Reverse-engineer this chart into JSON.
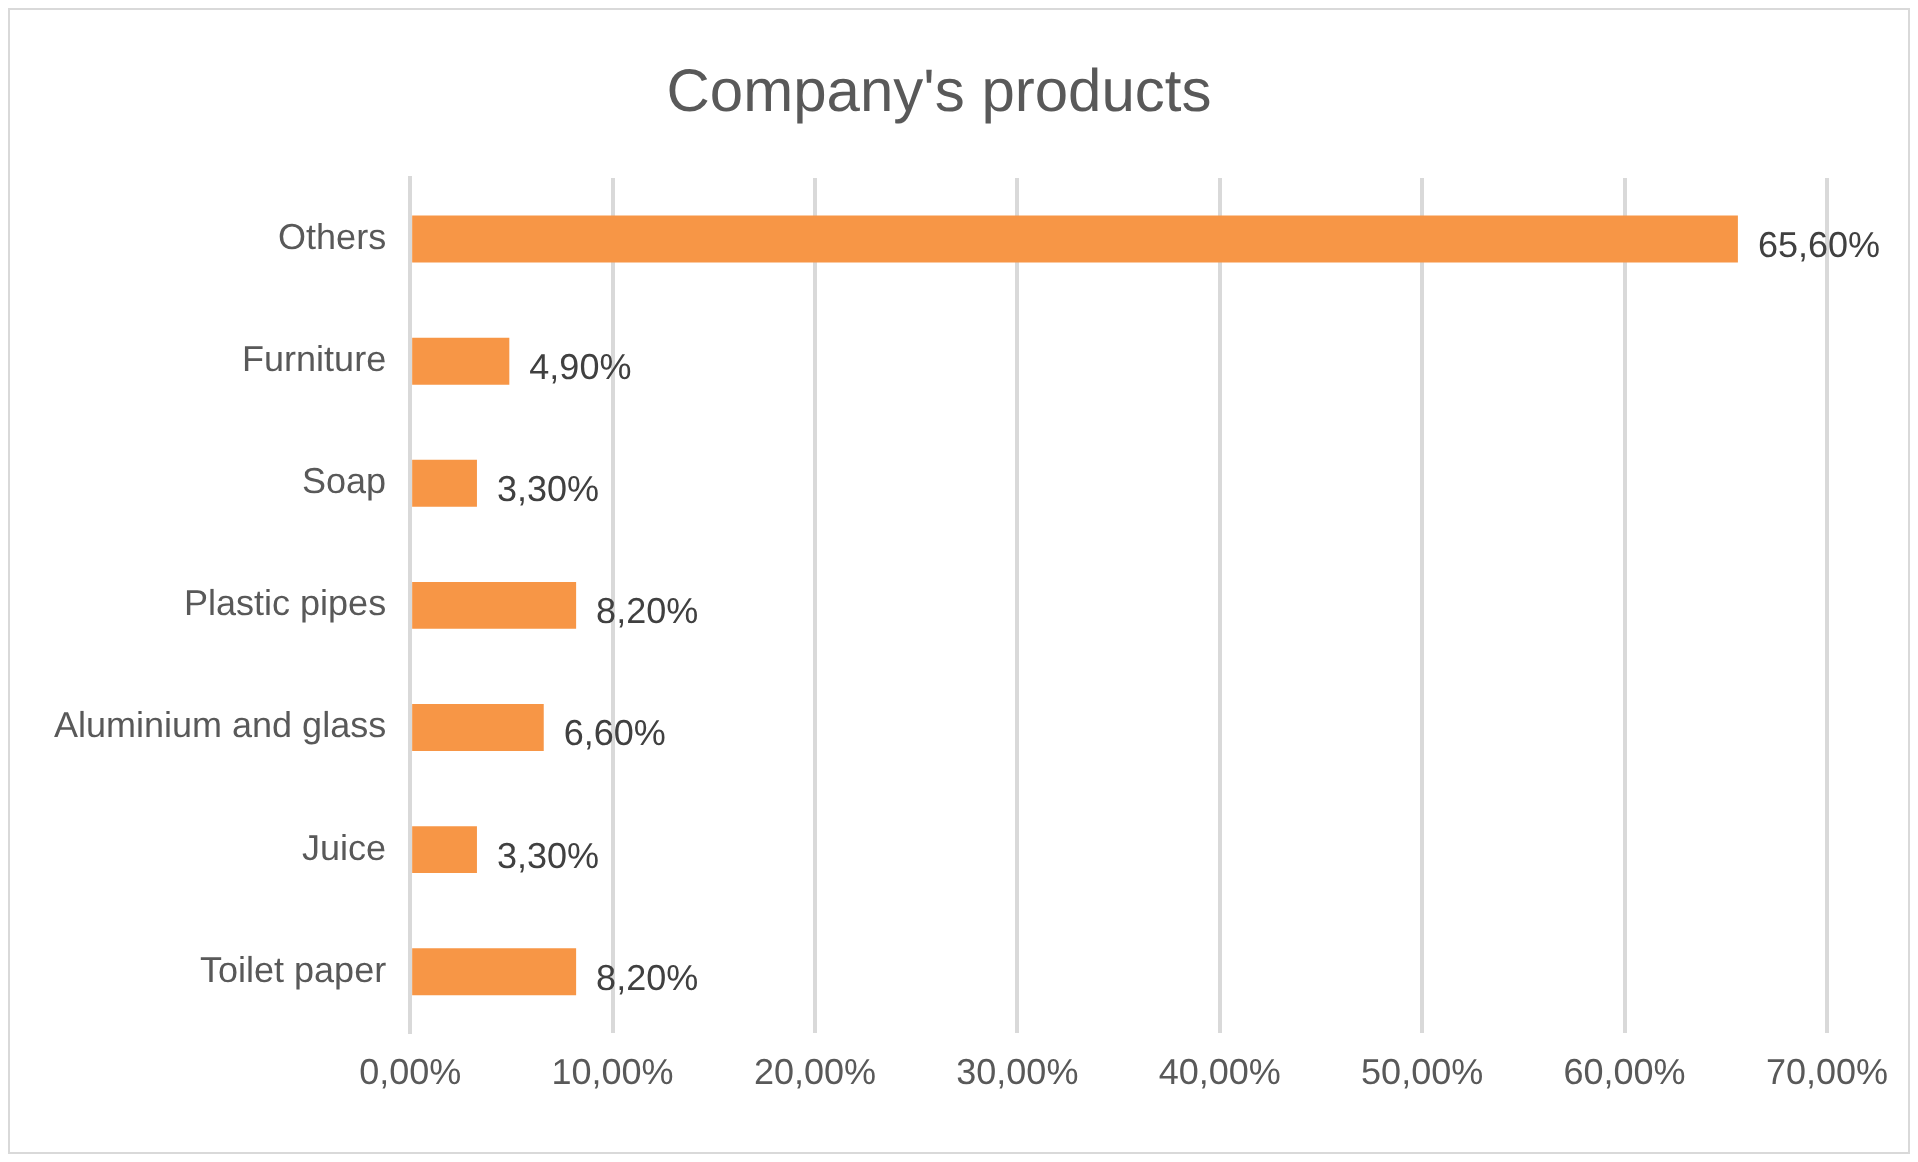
{
  "chart_data": {
    "type": "bar",
    "orientation": "horizontal",
    "title": "Company's products",
    "categories": [
      "Others",
      "Furniture",
      "Soap",
      "Plastic pipes",
      "Aluminium and glass",
      "Juice",
      "Toilet paper"
    ],
    "values": [
      65.6,
      4.9,
      3.3,
      8.2,
      6.6,
      3.3,
      8.2
    ],
    "value_labels": [
      "65,60%",
      "4,90%",
      "3,30%",
      "8,20%",
      "6,60%",
      "3,30%",
      "8,20%"
    ],
    "color": "#f79646",
    "xlim": [
      0,
      70
    ],
    "xticks": [
      {
        "value": 0,
        "label": "0,00%"
      },
      {
        "value": 10,
        "label": "10,00%"
      },
      {
        "value": 20,
        "label": "20,00%"
      },
      {
        "value": 30,
        "label": "30,00%"
      },
      {
        "value": 40,
        "label": "40,00%"
      },
      {
        "value": 50,
        "label": "50,00%"
      },
      {
        "value": 60,
        "label": "60,00%"
      },
      {
        "value": 70,
        "label": "70,00%"
      }
    ],
    "grid": "x",
    "legend": false
  }
}
